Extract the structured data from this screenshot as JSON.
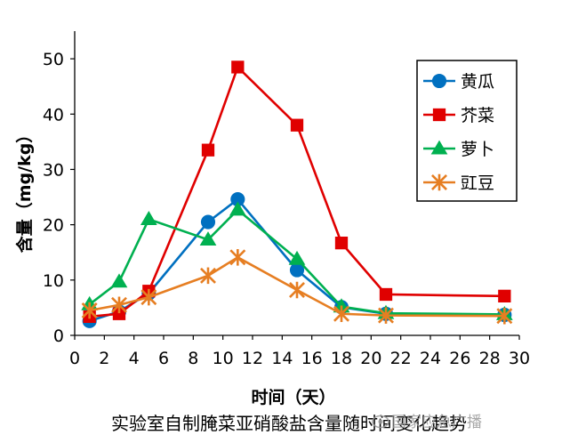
{
  "chart_data": {
    "type": "line",
    "title": "",
    "xlabel": "时间（天）",
    "ylabel": "含量（mg/kg）",
    "xlim": [
      0,
      30
    ],
    "ylim": [
      0,
      55
    ],
    "x_ticks": [
      0,
      2,
      4,
      6,
      8,
      10,
      12,
      14,
      16,
      18,
      20,
      22,
      24,
      26,
      28,
      30
    ],
    "y_ticks": [
      0,
      10,
      20,
      30,
      40,
      50
    ],
    "grid": false,
    "legend_position": "top-right",
    "series": [
      {
        "name": "黄瓜",
        "color": "#0070c0",
        "marker": "circle",
        "x": [
          1,
          3,
          5,
          9,
          11,
          15,
          18,
          21,
          29
        ],
        "y": [
          2.6,
          4.3,
          7.6,
          20.5,
          24.6,
          11.8,
          5.1,
          3.9,
          3.7
        ]
      },
      {
        "name": "芥菜",
        "color": "#e00000",
        "marker": "square",
        "x": [
          1,
          3,
          5,
          9,
          11,
          15,
          18,
          21,
          29
        ],
        "y": [
          3.4,
          3.9,
          8.0,
          33.5,
          48.5,
          38.0,
          16.7,
          7.4,
          7.1
        ]
      },
      {
        "name": "萝卜",
        "color": "#00b050",
        "marker": "triangle",
        "x": [
          1,
          3,
          5,
          9,
          11,
          15,
          18,
          21,
          29
        ],
        "y": [
          5.6,
          9.7,
          21.0,
          17.3,
          22.7,
          13.8,
          5.2,
          4.0,
          3.8
        ]
      },
      {
        "name": "豇豆",
        "color": "#e67e22",
        "marker": "asterisk",
        "x": [
          1,
          3,
          5,
          9,
          11,
          15,
          18,
          21,
          29
        ],
        "y": [
          4.5,
          5.5,
          6.9,
          10.8,
          14.1,
          8.2,
          3.9,
          3.6,
          3.5
        ]
      }
    ]
  },
  "caption": "实验室自制腌菜亚硝酸盐含量随时间变化趋势",
  "watermark": "国家应急广播"
}
